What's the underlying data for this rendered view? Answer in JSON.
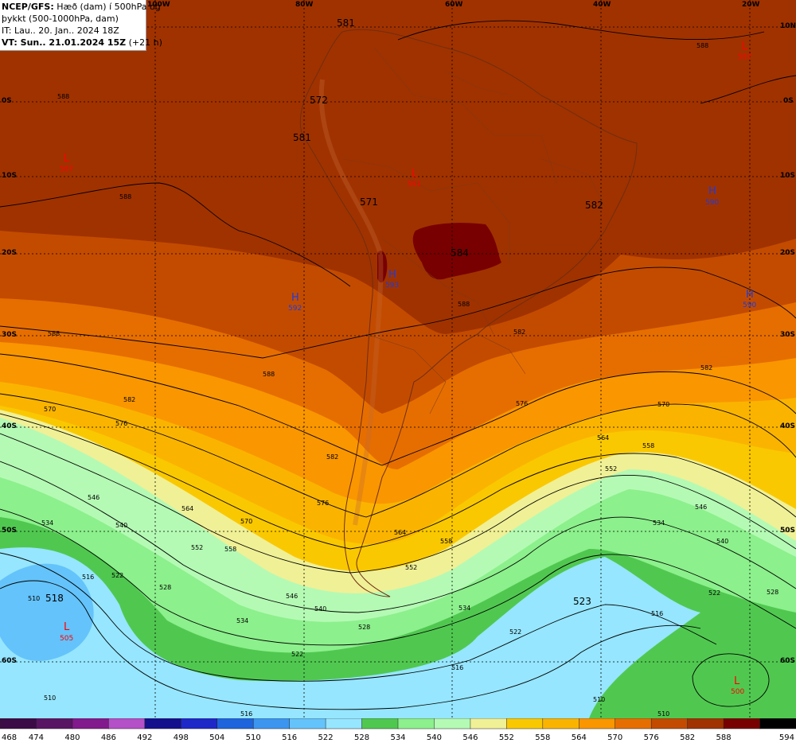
{
  "header": {
    "line1_bold": "NCEP/GFS:",
    "line1_rest": " Hæð (dam) í 500hPa og",
    "line2": "þykkt (500-1000hPa, dam)",
    "line3": "IT: Lau.. 20. Jan.. 2024 18Z",
    "line4_bold": "VT: Sun.. 21.01.2024 15Z",
    "line4_rest": " (+21 h)"
  },
  "longitudes": [
    "100W",
    "80W",
    "60W",
    "40W",
    "20W"
  ],
  "latitudes": [
    "10N",
    "0S",
    "10S",
    "20S",
    "30S",
    "40S",
    "50S",
    "60S"
  ],
  "legend": {
    "values": [
      "468",
      "474",
      "480",
      "486",
      "492",
      "498",
      "504",
      "510",
      "516",
      "522",
      "528",
      "534",
      "540",
      "546",
      "552",
      "558",
      "564",
      "570",
      "576",
      "582",
      "588",
      "594"
    ],
    "colors": [
      "#3c0a46",
      "#5a1464",
      "#82198c",
      "#b450c8",
      "#140f8c",
      "#1e28c8",
      "#1e64dc",
      "#3c96f0",
      "#64c3fa",
      "#96e6ff",
      "#50c850",
      "#8cf08c",
      "#b4fab4",
      "#f0f096",
      "#fac800",
      "#fab400",
      "#fa9600",
      "#e66e00",
      "#c34b00",
      "#a03200",
      "#780000",
      "#000000"
    ]
  },
  "pressure_centers": [
    {
      "type": "L",
      "value": "587",
      "color": "#ff0000"
    },
    {
      "type": "L",
      "value": "587",
      "color": "#ff0000"
    },
    {
      "type": "L",
      "value": "591",
      "color": "#ff0000"
    },
    {
      "type": "H",
      "value": "590",
      "color": "#1e3cdc"
    },
    {
      "type": "H",
      "value": "592",
      "color": "#1e3cdc"
    },
    {
      "type": "H",
      "value": "593",
      "color": "#1e3cdc"
    },
    {
      "type": "H",
      "value": "590",
      "color": "#1e3cdc"
    },
    {
      "type": "L",
      "value": "505",
      "color": "#ff0000"
    },
    {
      "type": "L",
      "value": "500",
      "color": "#ff0000"
    }
  ],
  "thickness_labels": [
    "581",
    "572",
    "581",
    "571",
    "582",
    "584",
    "518",
    "523"
  ],
  "contour_labels": [
    "588",
    "588",
    "588",
    "588",
    "588",
    "588",
    "582",
    "582",
    "582",
    "582",
    "576",
    "576",
    "576",
    "570",
    "570",
    "570",
    "564",
    "564",
    "564",
    "558",
    "558",
    "558",
    "552",
    "552",
    "552",
    "546",
    "546",
    "546",
    "540",
    "540",
    "540",
    "534",
    "534",
    "534",
    "534",
    "528",
    "528",
    "528",
    "522",
    "522",
    "522",
    "522",
    "516",
    "516",
    "516",
    "516",
    "510",
    "510",
    "510",
    "510"
  ]
}
